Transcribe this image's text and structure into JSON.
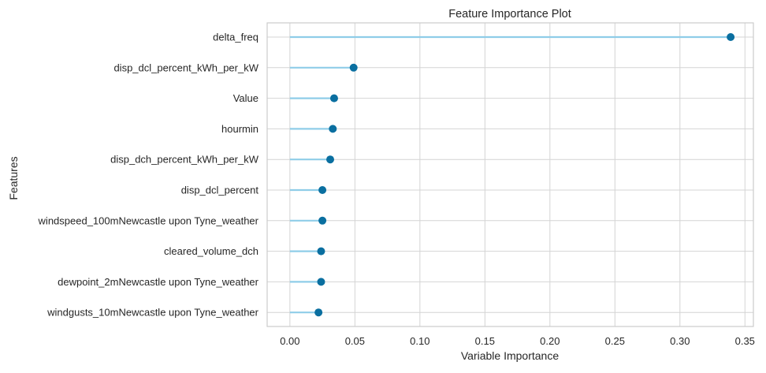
{
  "chart_data": {
    "type": "lollipop",
    "title": "Feature Importance Plot",
    "xlabel": "Variable Importance",
    "ylabel": "Features",
    "xlim": [
      -0.0175,
      0.3565
    ],
    "xticks": [
      0.0,
      0.05,
      0.1,
      0.15,
      0.2,
      0.25,
      0.3,
      0.35
    ],
    "xtick_labels": [
      "0.00",
      "0.05",
      "0.10",
      "0.15",
      "0.20",
      "0.25",
      "0.30",
      "0.35"
    ],
    "grid": true,
    "categories": [
      "delta_freq",
      "disp_dcl_percent_kWh_per_kW",
      "Value",
      "hourmin",
      "disp_dch_percent_kWh_per_kW",
      "disp_dcl_percent",
      "windspeed_100mNewcastle upon Tyne_weather",
      "cleared_volume_dch",
      "dewpoint_2mNewcastle upon Tyne_weather",
      "windgusts_10mNewcastle upon Tyne_weather"
    ],
    "values": [
      0.339,
      0.049,
      0.034,
      0.033,
      0.031,
      0.025,
      0.025,
      0.024,
      0.024,
      0.022
    ],
    "colors": {
      "stem": "#8fcde8",
      "marker": "#0a6fa0",
      "grid": "#d4d4d4",
      "frame": "#cccccc"
    }
  }
}
